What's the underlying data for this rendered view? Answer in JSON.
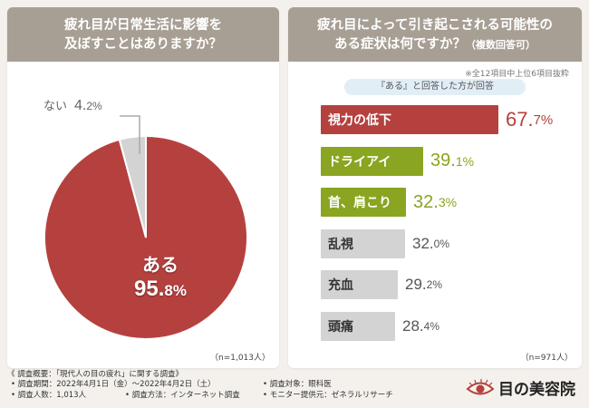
{
  "left": {
    "title_line1": "疲れ目が日常生活に影響を",
    "title_line2": "及ぼすことはありますか？",
    "n_label": "（n=1,013人）"
  },
  "right": {
    "title_line1": "疲れ目によって引き起こされる可能性の",
    "title_line2_main": "ある症状は何ですか？",
    "title_line2_sub": "（複数回答可）",
    "note": "※全12項目中上位6項目抜粋",
    "banner": "『ある』と回答した方が回答",
    "n_label": "（n=971人）"
  },
  "footer": {
    "summary": "《 調査概要：「現代人の目の疲れ」に関する調査》",
    "period": "• 調査期間：2022年4月1日（金）～2022年4月2日（土）",
    "count": "• 調査人数：1,013人",
    "method": "• 調査方法：インターネット調査",
    "target": "• 調査対象：眼科医",
    "provider": "• モニター提供元：ゼネラルリサーチ"
  },
  "logo": {
    "text": "目の美容院"
  },
  "colors": {
    "red": "#b5413f",
    "green": "#8aa521",
    "gray": "#d3d3d3",
    "header": "#a79f94",
    "pct_red": "#b5413f",
    "pct_green": "#8aa521",
    "pct_gray": "#555555"
  },
  "chart_data": [
    {
      "type": "pie",
      "labels": [
        "ある",
        "ない"
      ],
      "values": [
        95.8,
        4.2
      ],
      "display": [
        {
          "label": "ある",
          "int": "95.",
          "dec": "8%"
        },
        {
          "label": "ない",
          "int": "4.",
          "dec": "2%"
        }
      ]
    },
    {
      "type": "bar",
      "categories": [
        "視力の低下",
        "ドライアイ",
        "首、肩こり",
        "乱視",
        "充血",
        "頭痛"
      ],
      "values": [
        67.7,
        39.1,
        32.3,
        32.0,
        29.2,
        28.4
      ],
      "display": [
        {
          "int": "67.",
          "dec": "7%"
        },
        {
          "int": "39.",
          "dec": "1%"
        },
        {
          "int": "32.",
          "dec": "3%"
        },
        {
          "int": "32.",
          "dec": "0%"
        },
        {
          "int": "29.",
          "dec": "2%"
        },
        {
          "int": "28.",
          "dec": "4%"
        }
      ]
    }
  ]
}
